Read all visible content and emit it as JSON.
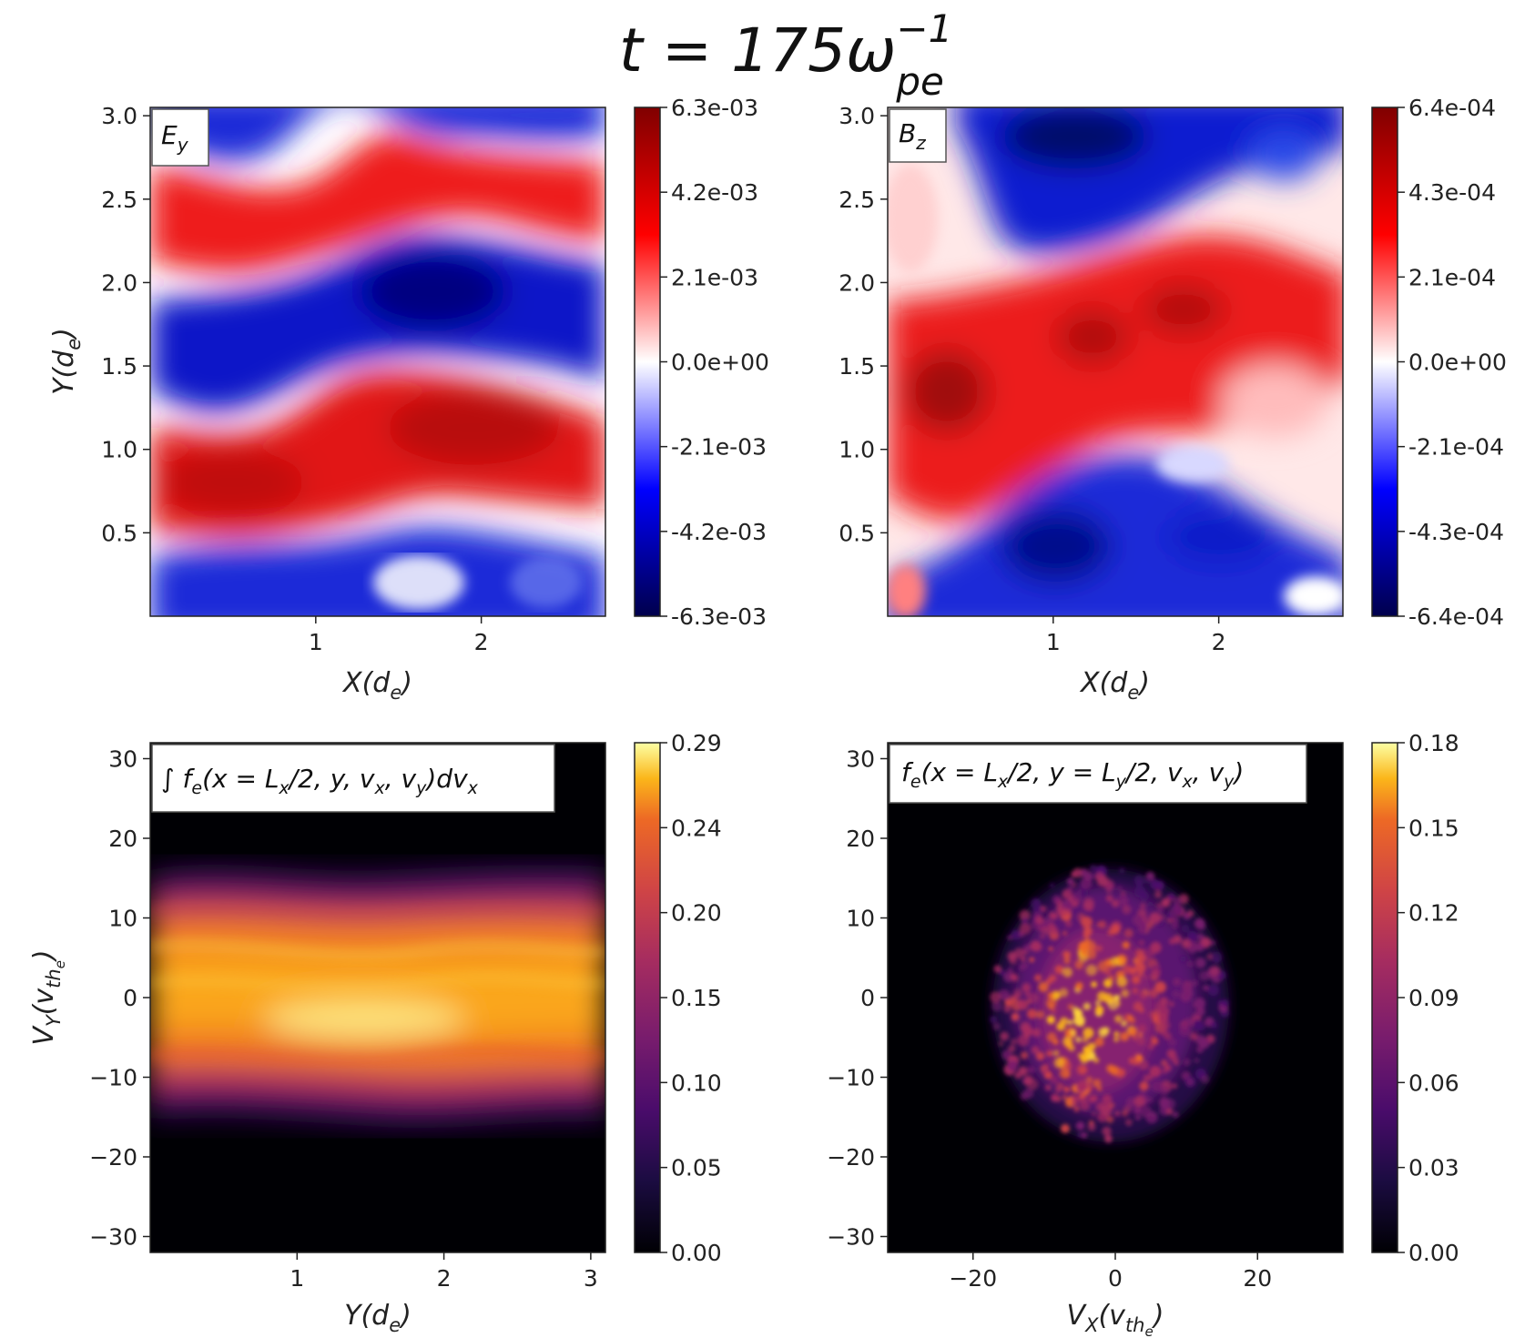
{
  "figure": {
    "title_main": "t = 175ω",
    "title_sup": "−1",
    "title_sub": "pe"
  },
  "chart_data": [
    {
      "type": "heatmap",
      "panel": "top-left",
      "legend": {
        "main": "E",
        "sub": "y"
      },
      "xlabel": {
        "main": "X(d",
        "sub": "e",
        "end": ")"
      },
      "ylabel": {
        "main": "Y(d",
        "sub": "e",
        "end": ")"
      },
      "xlim": [
        0,
        2.75
      ],
      "ylim": [
        0,
        3.05
      ],
      "xticks": [
        1,
        2
      ],
      "xtick_labels": [
        "1",
        "2"
      ],
      "yticks": [
        0.5,
        1.0,
        1.5,
        2.0,
        2.5,
        3.0
      ],
      "ytick_labels": [
        "0.5",
        "1.0",
        "1.5",
        "2.0",
        "2.5",
        "3.0"
      ],
      "colormap": "seismic",
      "colorbar": {
        "min": -0.0063,
        "max": 0.0063,
        "tick_labels": [
          "6.3e-03",
          "4.2e-03",
          "2.1e-03",
          "0.0e+00",
          "-2.1e-03",
          "-4.2e-03",
          "-6.3e-03"
        ]
      }
    },
    {
      "type": "heatmap",
      "panel": "top-right",
      "legend": {
        "main": "B",
        "sub": "z"
      },
      "xlabel": {
        "main": "X(d",
        "sub": "e",
        "end": ")"
      },
      "ylabel": {
        "main": "",
        "sub": "",
        "end": ""
      },
      "xlim": [
        0,
        2.75
      ],
      "ylim": [
        0,
        3.05
      ],
      "xticks": [
        1,
        2
      ],
      "xtick_labels": [
        "1",
        "2"
      ],
      "yticks": [
        0.5,
        1.0,
        1.5,
        2.0,
        2.5,
        3.0
      ],
      "ytick_labels": [
        "0.5",
        "1.0",
        "1.5",
        "2.0",
        "2.5",
        "3.0"
      ],
      "colormap": "seismic",
      "colorbar": {
        "min": -0.00064,
        "max": 0.00064,
        "tick_labels": [
          "6.4e-04",
          "4.3e-04",
          "2.1e-04",
          "0.0e+00",
          "-2.1e-04",
          "-4.3e-04",
          "-6.4e-04"
        ]
      }
    },
    {
      "type": "heatmap",
      "panel": "bottom-left",
      "legend": {
        "text": "∫ f",
        "sub": "e",
        "rest": "(x = L",
        "sub2": "x",
        "rest2": "/2, y, v",
        "sub3": "x",
        "rest3": ", v",
        "sub4": "y",
        "rest4": ")dv",
        "sub5": "x"
      },
      "xlabel": {
        "main": "Y(d",
        "sub": "e",
        "end": ")"
      },
      "ylabel": {
        "main": "V",
        "sub": "Y",
        "end2": "(v",
        "sub2": "th",
        "subsub": "e",
        "end": ")"
      },
      "xlim": [
        0,
        3.1
      ],
      "ylim": [
        -32,
        32
      ],
      "xticks": [
        1,
        2,
        3
      ],
      "xtick_labels": [
        "1",
        "2",
        "3"
      ],
      "yticks": [
        -30,
        -20,
        -10,
        0,
        10,
        20,
        30
      ],
      "ytick_labels": [
        "−30",
        "−20",
        "−10",
        "0",
        "10",
        "20",
        "30"
      ],
      "colormap": "inferno",
      "colorbar": {
        "min": 0.0,
        "max": 0.29,
        "tick_labels": [
          "0.29",
          "0.24",
          "0.20",
          "0.15",
          "0.10",
          "0.05",
          "0.00"
        ]
      }
    },
    {
      "type": "heatmap",
      "panel": "bottom-right",
      "legend": {
        "text": "f",
        "sub": "e",
        "rest": "(x = L",
        "sub2": "x",
        "rest2": "/2, y = L",
        "sub3": "y",
        "rest3": "/2, v",
        "sub4": "x",
        "rest4": ", v",
        "sub5": "y",
        "rest5": ")"
      },
      "xlabel": {
        "main": "V",
        "sub": "X",
        "end2": "(v",
        "sub2": "th",
        "subsub": "e",
        "end": ")"
      },
      "xlim": [
        -32,
        32
      ],
      "ylim": [
        -32,
        32
      ],
      "xticks": [
        -20,
        0,
        20
      ],
      "xtick_labels": [
        "−20",
        "0",
        "20"
      ],
      "yticks": [
        -30,
        -20,
        -10,
        0,
        10,
        20,
        30
      ],
      "ytick_labels": [
        "−30",
        "−20",
        "−10",
        "0",
        "10",
        "20",
        "30"
      ],
      "colormap": "inferno",
      "colorbar": {
        "min": 0.0,
        "max": 0.18,
        "tick_labels": [
          "0.18",
          "0.15",
          "0.12",
          "0.09",
          "0.06",
          "0.03",
          "0.00"
        ]
      }
    }
  ]
}
